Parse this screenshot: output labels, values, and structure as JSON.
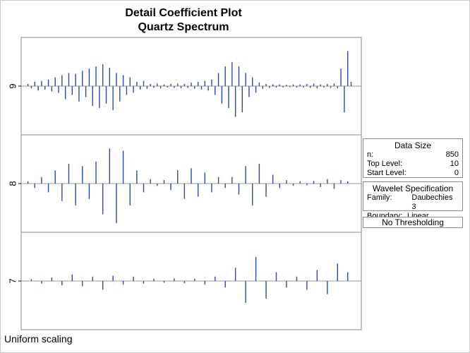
{
  "header": {
    "title": "Detail Coefficient Plot",
    "subtitle": "Quartz Spectrum"
  },
  "data_size": {
    "heading": "Data Size",
    "rows": [
      {
        "label": "n:",
        "value": "850"
      },
      {
        "label": "Top Level:",
        "value": "10"
      },
      {
        "label": "Start Level:",
        "value": "0"
      }
    ]
  },
  "wavelet_spec": {
    "heading": "Wavelet Specification",
    "rows": [
      {
        "label": "Family:",
        "value": "Daubechies 3"
      },
      {
        "label": "Boundary:",
        "value": "Linear Extension"
      }
    ]
  },
  "threshold": {
    "label": "No Thresholding"
  },
  "footer": {
    "note": "Uniform scaling"
  },
  "colors": {
    "stem": "#2a4aaa",
    "axis": "#9a9a9a",
    "frame": "#8a8a8a"
  },
  "chart_data": {
    "type": "bar",
    "xlim": [
      0,
      1
    ],
    "ylim": [
      -1,
      1
    ],
    "levels": [
      {
        "level": "9",
        "x": [
          0.02,
          0.03,
          0.04,
          0.05,
          0.06,
          0.07,
          0.08,
          0.09,
          0.1,
          0.11,
          0.12,
          0.13,
          0.14,
          0.15,
          0.16,
          0.17,
          0.18,
          0.19,
          0.2,
          0.21,
          0.22,
          0.23,
          0.24,
          0.25,
          0.26,
          0.27,
          0.28,
          0.29,
          0.3,
          0.31,
          0.32,
          0.33,
          0.34,
          0.35,
          0.36,
          0.37,
          0.38,
          0.39,
          0.4,
          0.41,
          0.42,
          0.43,
          0.44,
          0.45,
          0.46,
          0.47,
          0.48,
          0.49,
          0.5,
          0.51,
          0.52,
          0.53,
          0.54,
          0.55,
          0.56,
          0.57,
          0.58,
          0.59,
          0.6,
          0.61,
          0.62,
          0.63,
          0.64,
          0.65,
          0.66,
          0.67,
          0.68,
          0.69,
          0.7,
          0.71,
          0.72,
          0.73,
          0.74,
          0.75,
          0.76,
          0.77,
          0.78,
          0.79,
          0.8,
          0.81,
          0.82,
          0.83,
          0.84,
          0.85,
          0.86,
          0.87,
          0.88,
          0.89,
          0.9,
          0.91,
          0.92,
          0.93,
          0.94,
          0.95,
          0.96,
          0.97
        ],
        "y": [
          0.05,
          -0.05,
          0.1,
          -0.1,
          0.12,
          -0.08,
          0.15,
          -0.12,
          0.2,
          -0.15,
          0.25,
          -0.3,
          0.3,
          -0.2,
          0.28,
          -0.35,
          0.35,
          -0.25,
          0.4,
          -0.45,
          0.45,
          -0.5,
          0.5,
          -0.4,
          0.42,
          -0.55,
          0.3,
          -0.35,
          0.25,
          -0.2,
          0.2,
          -0.15,
          0.1,
          -0.08,
          0.12,
          -0.06,
          0.05,
          -0.04,
          0.06,
          -0.05,
          0.04,
          -0.03,
          0.05,
          -0.04,
          0.06,
          -0.05,
          0.05,
          -0.04,
          0.08,
          -0.06,
          0.1,
          -0.08,
          0.12,
          -0.1,
          0.15,
          -0.2,
          0.3,
          -0.4,
          0.45,
          -0.5,
          0.55,
          -0.7,
          0.45,
          -0.6,
          0.3,
          -0.25,
          0.2,
          -0.15,
          0.08,
          -0.06,
          0.05,
          -0.04,
          0.04,
          -0.03,
          0.04,
          -0.03,
          0.03,
          -0.02,
          0.04,
          -0.03,
          0.04,
          -0.03,
          0.05,
          -0.04,
          0.06,
          -0.05,
          0.04,
          -0.03,
          0.05,
          -0.04,
          0.06,
          -0.05,
          0.4,
          -0.6,
          0.8,
          0.1
        ]
      },
      {
        "level": "8",
        "x": [
          0.02,
          0.04,
          0.06,
          0.08,
          0.1,
          0.12,
          0.14,
          0.16,
          0.18,
          0.2,
          0.22,
          0.24,
          0.26,
          0.28,
          0.3,
          0.32,
          0.34,
          0.36,
          0.38,
          0.4,
          0.42,
          0.44,
          0.46,
          0.48,
          0.5,
          0.52,
          0.54,
          0.56,
          0.58,
          0.6,
          0.62,
          0.64,
          0.66,
          0.68,
          0.7,
          0.72,
          0.74,
          0.76,
          0.78,
          0.8,
          0.82,
          0.84,
          0.86,
          0.88,
          0.9,
          0.92,
          0.94,
          0.96
        ],
        "y": [
          0.05,
          -0.1,
          0.15,
          -0.2,
          0.3,
          -0.4,
          0.45,
          -0.5,
          0.4,
          -0.35,
          0.5,
          -0.7,
          0.8,
          -0.9,
          0.75,
          -0.5,
          0.3,
          -0.2,
          0.1,
          -0.05,
          0.08,
          -0.15,
          0.3,
          -0.35,
          0.35,
          -0.3,
          0.25,
          -0.2,
          0.15,
          -0.1,
          0.15,
          -0.25,
          0.4,
          -0.5,
          0.45,
          -0.3,
          0.2,
          -0.1,
          0.08,
          -0.05,
          0.05,
          -0.04,
          0.06,
          -0.08,
          0.1,
          -0.12,
          0.08,
          0.05
        ]
      },
      {
        "level": "7",
        "x": [
          0.03,
          0.06,
          0.09,
          0.12,
          0.15,
          0.18,
          0.21,
          0.24,
          0.27,
          0.3,
          0.33,
          0.36,
          0.39,
          0.42,
          0.45,
          0.48,
          0.51,
          0.54,
          0.57,
          0.6,
          0.63,
          0.66,
          0.69,
          0.72,
          0.75,
          0.78,
          0.81,
          0.84,
          0.87,
          0.9,
          0.93,
          0.96
        ],
        "y": [
          0.04,
          -0.06,
          0.08,
          -0.1,
          0.15,
          -0.12,
          0.1,
          -0.2,
          0.12,
          -0.08,
          0.1,
          -0.06,
          0.05,
          -0.04,
          0.06,
          -0.05,
          0.05,
          -0.08,
          0.1,
          -0.15,
          0.3,
          -0.5,
          0.55,
          -0.4,
          0.2,
          -0.15,
          0.1,
          -0.2,
          0.25,
          -0.3,
          0.4,
          0.2
        ]
      }
    ]
  }
}
